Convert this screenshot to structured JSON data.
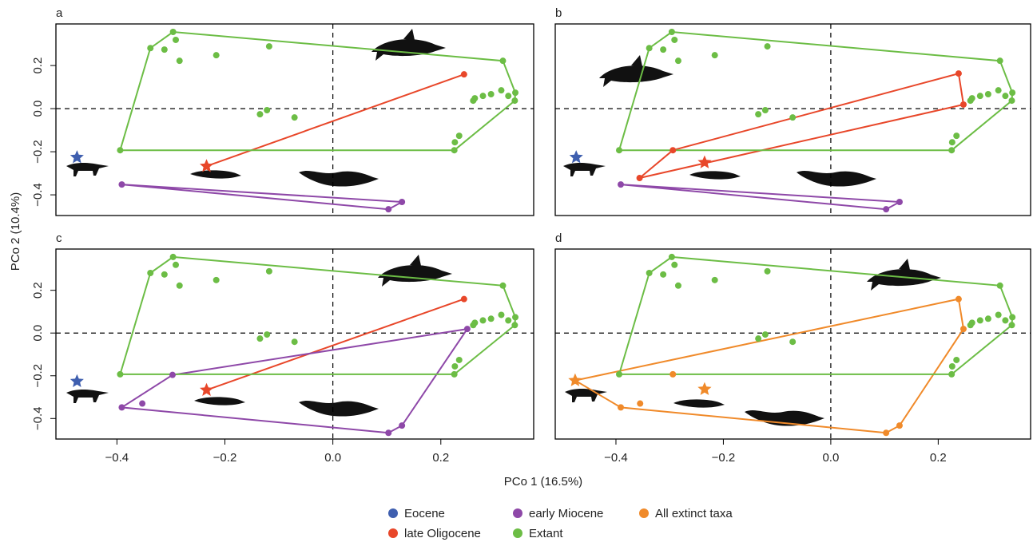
{
  "x_label": "PCo 1 (16.5%)",
  "y_label": "PCo 2 (10.4%)",
  "chart_data": [
    {
      "type": "scatter",
      "title": "a",
      "xlim": [
        -0.513,
        0.372
      ],
      "ylim": [
        -0.496,
        0.393
      ],
      "zero_lines": true,
      "yticks": [
        {
          "value": -0.4,
          "label": "−0.4"
        },
        {
          "value": -0.2,
          "label": "−0.2"
        },
        {
          "value": 0,
          "label": "0.0"
        },
        0.2
      ],
      "series": [
        {
          "name": "Eocene",
          "color": "#3f5faf",
          "x": [
            -0.474
          ],
          "y": [
            -0.226
          ],
          "markers": [
            "star"
          ]
        },
        {
          "name": "late Oligocene",
          "color": "#e8472a",
          "x": [
            0.243,
            -0.234
          ],
          "y": [
            0.159,
            -0.267
          ],
          "markers": [
            "circle",
            "star"
          ]
        },
        {
          "name": "early Miocene",
          "color": "#8e48a8",
          "x": [
            -0.391,
            0.128,
            0.103
          ],
          "y": [
            -0.352,
            -0.433,
            -0.467
          ]
        },
        {
          "name": "Extant",
          "color": "#6cbd45",
          "x": [
            -0.394,
            -0.338,
            -0.296,
            -0.291,
            -0.312,
            -0.284,
            -0.216,
            -0.118,
            -0.135,
            -0.122,
            -0.071,
            0.315,
            0.338,
            0.337,
            0.325,
            0.312,
            0.293,
            0.278,
            0.263,
            0.26,
            0.234,
            0.226,
            0.225
          ],
          "y": [
            -0.193,
            0.281,
            0.356,
            0.319,
            0.274,
            0.222,
            0.248,
            0.289,
            -0.026,
            -0.007,
            -0.041,
            0.222,
            0.074,
            0.037,
            0.059,
            0.085,
            0.067,
            0.059,
            0.048,
            0.037,
            -0.126,
            -0.156,
            -0.193
          ]
        }
      ]
    },
    {
      "type": "scatter",
      "title": "b",
      "xlim": [
        -0.513,
        0.372
      ],
      "ylim": [
        -0.496,
        0.393
      ],
      "zero_lines": true,
      "series": [
        {
          "name": "Eocene",
          "color": "#3f5faf",
          "x": [
            -0.474
          ],
          "y": [
            -0.226
          ],
          "markers": [
            "star"
          ]
        },
        {
          "name": "late Oligocene",
          "color": "#e8472a",
          "x": [
            0.238,
            0.247,
            -0.356,
            -0.294,
            -0.235
          ],
          "y": [
            0.163,
            0.019,
            -0.322,
            -0.193,
            -0.25
          ],
          "markers": [
            "circle",
            "circle",
            "circle",
            "circle",
            "star"
          ]
        },
        {
          "name": "early Miocene",
          "color": "#8e48a8",
          "x": [
            -0.391,
            0.128,
            0.103
          ],
          "y": [
            -0.352,
            -0.433,
            -0.467
          ]
        },
        {
          "name": "Extant",
          "color": "#6cbd45",
          "x": [
            -0.394,
            -0.338,
            -0.296,
            -0.291,
            -0.312,
            -0.284,
            -0.216,
            -0.118,
            -0.135,
            -0.122,
            -0.071,
            0.315,
            0.338,
            0.337,
            0.325,
            0.312,
            0.293,
            0.278,
            0.263,
            0.26,
            0.234,
            0.226,
            0.225
          ],
          "y": [
            -0.193,
            0.281,
            0.356,
            0.319,
            0.274,
            0.222,
            0.248,
            0.289,
            -0.026,
            -0.007,
            -0.041,
            0.222,
            0.074,
            0.037,
            0.059,
            0.085,
            0.067,
            0.059,
            0.048,
            0.037,
            -0.126,
            -0.156,
            -0.193
          ]
        }
      ]
    },
    {
      "type": "scatter",
      "title": "c",
      "xlim": [
        -0.513,
        0.372
      ],
      "ylim": [
        -0.496,
        0.393
      ],
      "zero_lines": true,
      "xticks": [
        {
          "value": -0.4,
          "label": "−0.4"
        },
        {
          "value": -0.2,
          "label": "−0.2"
        },
        {
          "value": 0,
          "label": "0.0"
        },
        0.2
      ],
      "yticks": [
        {
          "value": -0.4,
          "label": "−0.4"
        },
        {
          "value": -0.2,
          "label": "−0.2"
        },
        {
          "value": 0,
          "label": "0.0"
        },
        0.2
      ],
      "series": [
        {
          "name": "Eocene",
          "color": "#3f5faf",
          "x": [
            -0.474
          ],
          "y": [
            -0.226
          ],
          "markers": [
            "star"
          ]
        },
        {
          "name": "late Oligocene",
          "color": "#e8472a",
          "x": [
            0.243,
            -0.234
          ],
          "y": [
            0.159,
            -0.267
          ],
          "markers": [
            "circle",
            "star"
          ]
        },
        {
          "name": "early Miocene",
          "color": "#8e48a8",
          "x": [
            -0.391,
            -0.297,
            0.249,
            0.128,
            0.103,
            -0.353
          ],
          "y": [
            -0.348,
            -0.196,
            0.019,
            -0.433,
            -0.467,
            -0.33
          ]
        },
        {
          "name": "Extant",
          "color": "#6cbd45",
          "x": [
            -0.394,
            -0.338,
            -0.296,
            -0.291,
            -0.312,
            -0.284,
            -0.216,
            -0.118,
            -0.135,
            -0.122,
            -0.071,
            0.315,
            0.338,
            0.337,
            0.325,
            0.312,
            0.293,
            0.278,
            0.263,
            0.26,
            0.234,
            0.226,
            0.225
          ],
          "y": [
            -0.193,
            0.281,
            0.356,
            0.319,
            0.274,
            0.222,
            0.248,
            0.289,
            -0.026,
            -0.007,
            -0.041,
            0.222,
            0.074,
            0.037,
            0.059,
            0.085,
            0.067,
            0.059,
            0.048,
            0.037,
            -0.126,
            -0.156,
            -0.193
          ]
        }
      ]
    },
    {
      "type": "scatter",
      "title": "d",
      "xlim": [
        -0.513,
        0.372
      ],
      "ylim": [
        -0.496,
        0.393
      ],
      "zero_lines": true,
      "xticks": [
        {
          "value": -0.4,
          "label": "−0.4"
        },
        {
          "value": -0.2,
          "label": "−0.2"
        },
        {
          "value": 0,
          "label": "0.0"
        },
        0.2
      ],
      "series": [
        {
          "name": "All extinct taxa",
          "color": "#f08a2a",
          "x": [
            -0.476,
            0.238,
            0.247,
            0.128,
            0.103,
            -0.391,
            -0.355,
            -0.294,
            -0.235
          ],
          "y": [
            -0.222,
            0.159,
            0.019,
            -0.433,
            -0.467,
            -0.348,
            -0.33,
            -0.193,
            -0.263
          ],
          "markers": [
            "star",
            "circle",
            "circle",
            "circle",
            "circle",
            "circle",
            "circle",
            "circle",
            "star"
          ]
        },
        {
          "name": "Extant",
          "color": "#6cbd45",
          "x": [
            -0.394,
            -0.338,
            -0.296,
            -0.291,
            -0.312,
            -0.284,
            -0.216,
            -0.118,
            -0.135,
            -0.122,
            -0.071,
            0.315,
            0.338,
            0.337,
            0.325,
            0.312,
            0.293,
            0.278,
            0.263,
            0.26,
            0.234,
            0.226,
            0.225
          ],
          "y": [
            -0.193,
            0.281,
            0.356,
            0.319,
            0.274,
            0.222,
            0.248,
            0.289,
            -0.026,
            -0.007,
            -0.041,
            0.222,
            0.074,
            0.037,
            0.059,
            0.085,
            0.067,
            0.059,
            0.048,
            0.037,
            -0.126,
            -0.156,
            -0.193
          ]
        }
      ]
    }
  ]
}
